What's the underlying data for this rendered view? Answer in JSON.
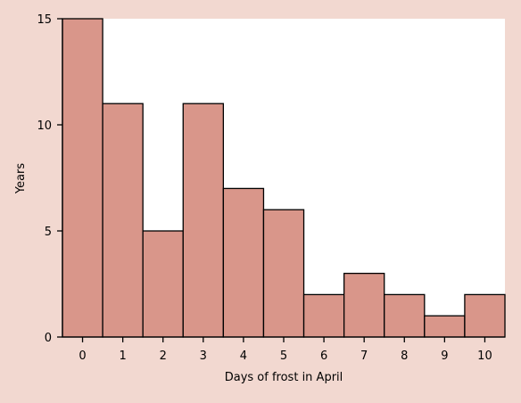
{
  "colors": {
    "page_background": "#f2d8d0",
    "plot_background": "#ffffff",
    "bar_fill": "#d9968a",
    "bar_stroke": "#000000"
  },
  "chart_data": {
    "type": "bar",
    "xlabel": "Days of frost in April",
    "ylabel": "Years",
    "categories": [
      "0",
      "1",
      "2",
      "3",
      "4",
      "5",
      "6",
      "7",
      "8",
      "9",
      "10"
    ],
    "values": [
      15,
      11,
      5,
      11,
      7,
      6,
      2,
      3,
      2,
      1,
      2
    ],
    "xlim": [
      -0.5,
      10.5
    ],
    "ylim": [
      0,
      15
    ],
    "yticks": [
      0,
      5,
      10,
      15
    ],
    "grid": false,
    "legend": "none"
  }
}
